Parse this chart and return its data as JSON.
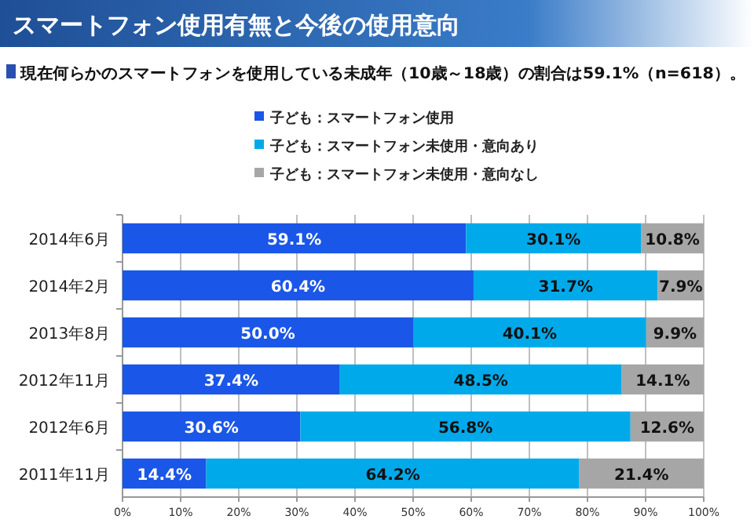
{
  "chart_data": {
    "type": "bar",
    "orientation": "horizontal",
    "stacked": true,
    "title": "スマートフォン使用有無と今後の使用意向",
    "subtitle": "現在何らかのスマートフォンを使用している未成年（10歳～18歳）の割合は59.1%（n=618）。",
    "categories": [
      "2014年6月",
      "2014年2月",
      "2013年8月",
      "2012年11月",
      "2012年6月",
      "2011年11月"
    ],
    "series": [
      {
        "name": "子ども：スマートフォン使用",
        "color": "#1a56e8",
        "values": [
          59.1,
          60.4,
          50.0,
          37.4,
          30.6,
          14.4
        ],
        "value_labels": [
          "59.1%",
          "60.4%",
          "50.0%",
          "37.4%",
          "30.6%",
          "14.4%"
        ]
      },
      {
        "name": "子ども：スマートフォン未使用・意向あり",
        "color": "#00aaea",
        "values": [
          30.1,
          31.7,
          40.1,
          48.5,
          56.8,
          64.2
        ],
        "value_labels": [
          "30.1%",
          "31.7%",
          "40.1%",
          "48.5%",
          "56.8%",
          "64.2%"
        ]
      },
      {
        "name": "子ども：スマートフォン未使用・意向なし",
        "color": "#a6a6a6",
        "values": [
          10.8,
          7.9,
          9.9,
          14.1,
          12.6,
          21.4
        ],
        "value_labels": [
          "10.8%",
          "7.9%",
          "9.9%",
          "14.1%",
          "12.6%",
          "21.4%"
        ]
      }
    ],
    "xlim": [
      0,
      100
    ],
    "xticks": [
      {
        "value": 0,
        "label": "0%"
      },
      {
        "value": 10,
        "label": "10%"
      },
      {
        "value": 20,
        "label": "20%"
      },
      {
        "value": 30,
        "label": "30%"
      },
      {
        "value": 40,
        "label": "40%"
      },
      {
        "value": 50,
        "label": "50%"
      },
      {
        "value": 60,
        "label": "60%"
      },
      {
        "value": 70,
        "label": "70%"
      },
      {
        "value": 80,
        "label": "80%"
      },
      {
        "value": 90,
        "label": "90%"
      },
      {
        "value": 100,
        "label": "100%"
      }
    ],
    "grid": "x",
    "legend": "top"
  }
}
